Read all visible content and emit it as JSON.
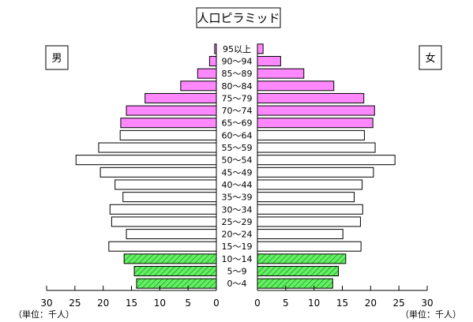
{
  "chart_data": {
    "type": "bar",
    "title": "人口ピラミッド",
    "left_label": "男",
    "right_label": "女",
    "unit_left": "（単位：千人）",
    "unit_right": "（単位：千人）",
    "xlim": [
      0,
      30
    ],
    "ticks": [
      0,
      5,
      10,
      15,
      20,
      25,
      30
    ],
    "grid": false,
    "categories": [
      "0～4",
      "5～9",
      "10～14",
      "15～19",
      "20～24",
      "25～29",
      "30～34",
      "35～39",
      "40～44",
      "45～49",
      "50～54",
      "55～59",
      "60～64",
      "65～69",
      "70～74",
      "75～79",
      "80～84",
      "85～89",
      "90～94",
      "95以上"
    ],
    "series": [
      {
        "name": "男",
        "values": [
          14.1,
          14.5,
          16.3,
          19.0,
          15.9,
          18.5,
          18.8,
          16.5,
          17.9,
          20.5,
          24.8,
          20.8,
          17.0,
          16.9,
          15.9,
          12.6,
          6.3,
          3.3,
          1.2,
          0.3
        ]
      },
      {
        "name": "女",
        "values": [
          13.3,
          14.3,
          15.6,
          18.3,
          15.1,
          18.2,
          18.6,
          17.1,
          18.5,
          20.5,
          24.3,
          20.8,
          18.9,
          20.4,
          20.7,
          18.8,
          13.5,
          8.2,
          4.1,
          1.0
        ]
      }
    ],
    "group_colors": {
      "children": "#66ee66",
      "working": "#ffffff",
      "elderly": "#ff88ff"
    },
    "stroke": "#000000"
  }
}
